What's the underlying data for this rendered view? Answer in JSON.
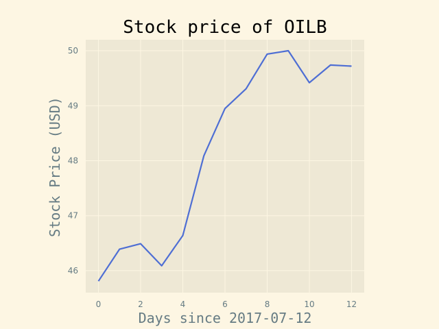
{
  "chart_data": {
    "type": "line",
    "title": "Stock price of OILB",
    "xlabel": "Days since 2017-07-12",
    "ylabel": "Stock Price (USD)",
    "x": [
      0,
      1,
      2,
      3,
      4,
      5,
      6,
      7,
      8,
      9,
      10,
      11,
      12
    ],
    "series": [
      {
        "values": [
          45.81,
          46.39,
          46.49,
          46.09,
          46.64,
          48.09,
          48.95,
          49.31,
          49.94,
          50.0,
          49.42,
          49.74,
          49.72
        ],
        "color": "#4e6ed4"
      }
    ],
    "xlim": [
      -0.6,
      12.6
    ],
    "ylim": [
      45.6,
      50.2
    ],
    "xticks": [
      0,
      2,
      4,
      6,
      8,
      10,
      12
    ],
    "xtick_labels": [
      "0",
      "2",
      "4",
      "6",
      "8",
      "10",
      "12"
    ],
    "yticks": [
      46,
      47,
      48,
      49,
      50
    ],
    "ytick_labels": [
      "46",
      "47",
      "48",
      "49",
      "50"
    ],
    "grid": true,
    "colors": {
      "figure_bg": "#fdf6e3",
      "axes_bg": "#eee8d5",
      "grid": "#fdf6e3",
      "tick_text": "#657b83",
      "title_text": "#000000"
    }
  }
}
